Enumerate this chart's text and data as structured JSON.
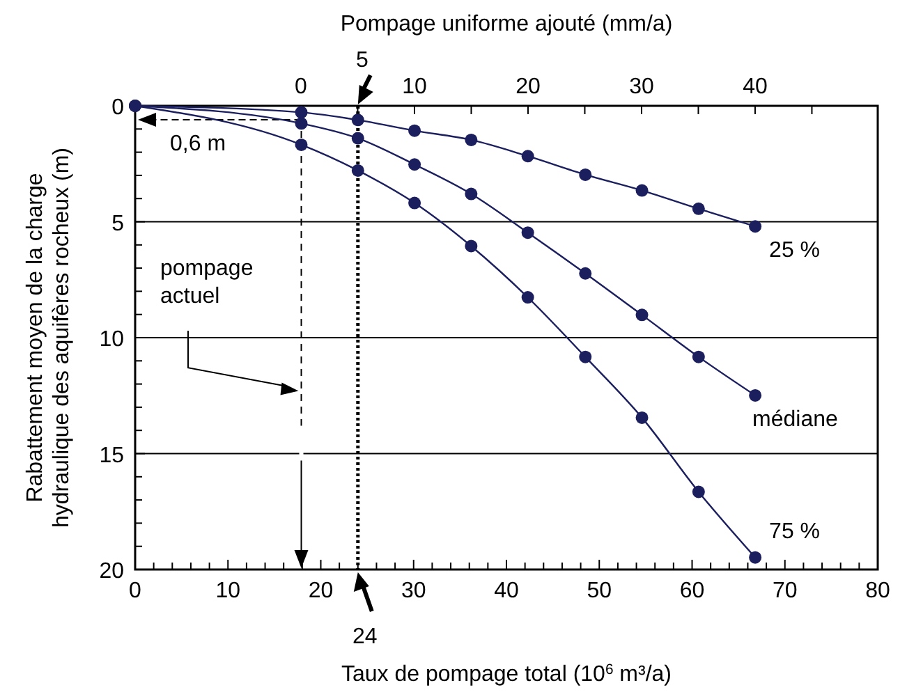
{
  "chart_data": {
    "type": "line",
    "xlabel": "Taux de pompage total (10$^{6}$ m³/a)",
    "ylabel": "Rabattement moyen de la charge\nhydraulique des aquifères rocheux (m)",
    "x2label": "Pompage uniforme ajouté (mm/a)",
    "xlim": [
      0,
      80
    ],
    "xticks": [
      0,
      {
        "value": 2,
        "label": null
      },
      {
        "value": 4,
        "label": null
      },
      {
        "value": 6,
        "label": null
      },
      {
        "value": 8,
        "label": null
      },
      10,
      {
        "value": 12,
        "label": null
      },
      {
        "value": 14,
        "label": null
      },
      {
        "value": 16,
        "label": null
      },
      {
        "value": 18,
        "label": null
      },
      20,
      {
        "value": 22,
        "label": null
      },
      {
        "value": 24,
        "label": null
      },
      {
        "value": 26,
        "label": null
      },
      {
        "value": 28,
        "label": null
      },
      30,
      {
        "value": 32,
        "label": null
      },
      {
        "value": 34,
        "label": null
      },
      {
        "value": 36,
        "label": null
      },
      {
        "value": 38,
        "label": null
      },
      40,
      {
        "value": 42,
        "label": null
      },
      {
        "value": 44,
        "label": null
      },
      {
        "value": 46,
        "label": null
      },
      {
        "value": 48,
        "label": null
      },
      50,
      {
        "value": 52,
        "label": null
      },
      {
        "value": 54,
        "label": null
      },
      {
        "value": 56,
        "label": null
      },
      {
        "value": 58,
        "label": null
      },
      60,
      {
        "value": 62,
        "label": null
      },
      {
        "value": 64,
        "label": null
      },
      {
        "value": 66,
        "label": null
      },
      {
        "value": 68,
        "label": null
      },
      70,
      {
        "value": 72,
        "label": null
      },
      {
        "value": 74,
        "label": null
      },
      {
        "value": 76,
        "label": null
      },
      {
        "value": 78,
        "label": null
      },
      80
    ],
    "x2lim": [
      -14.6,
      50.8
    ],
    "x2ticks": [
      0,
      {
        "value": 5,
        "label": null
      },
      10,
      {
        "value": 15,
        "label": null
      },
      20,
      {
        "value": 25,
        "label": null
      },
      30,
      {
        "value": 35,
        "label": null
      },
      40,
      {
        "value": 45,
        "label": null
      }
    ],
    "ylim": [
      20,
      0
    ],
    "yticks": [
      0,
      {
        "value": 1,
        "label": null
      },
      {
        "value": 2,
        "label": null
      },
      {
        "value": 3,
        "label": null
      },
      {
        "value": 4,
        "label": null
      },
      5,
      {
        "value": 6,
        "label": null
      },
      {
        "value": 7,
        "label": null
      },
      {
        "value": 8,
        "label": null
      },
      {
        "value": 9,
        "label": null
      },
      10,
      {
        "value": 11,
        "label": null
      },
      {
        "value": 12,
        "label": null
      },
      {
        "value": 13,
        "label": null
      },
      {
        "value": 14,
        "label": null
      },
      15,
      {
        "value": 16,
        "label": null
      },
      {
        "value": 17,
        "label": null
      },
      {
        "value": 18,
        "label": null
      },
      {
        "value": 19,
        "label": null
      },
      20
    ],
    "grid": "y",
    "marker": "circle",
    "line_style": "solid",
    "x": [
      0,
      17.9,
      24,
      30.1,
      36.2,
      42.3,
      48.5,
      54.6,
      60.7,
      66.8
    ],
    "series": [
      {
        "name": "25 %",
        "color": "#1b1f5e",
        "values": [
          0,
          0.28,
          0.61,
          1.07,
          1.47,
          2.17,
          2.97,
          3.65,
          4.44,
          5.2
        ]
      },
      {
        "name": "médiane",
        "color": "#1b1f5e",
        "values": [
          0,
          0.76,
          1.4,
          2.53,
          3.8,
          5.47,
          7.23,
          9.02,
          10.83,
          12.49
        ]
      },
      {
        "name": "75 %",
        "color": "#1b1f5e",
        "values": [
          0,
          1.68,
          2.79,
          4.19,
          6.05,
          8.26,
          10.83,
          13.45,
          16.65,
          19.48
        ]
      }
    ],
    "ref_lines": [
      {
        "axis": "x",
        "value": 17.9,
        "label": "pompage actuel",
        "line_style": "dashed"
      },
      {
        "axis": "x",
        "value": 24,
        "label": "24",
        "line_style": "dotted"
      }
    ],
    "annotations": [
      {
        "text": "0,6 m",
        "x": 17.9,
        "y": 0.6
      },
      {
        "text": "5",
        "x": 24,
        "y": 0
      }
    ]
  }
}
